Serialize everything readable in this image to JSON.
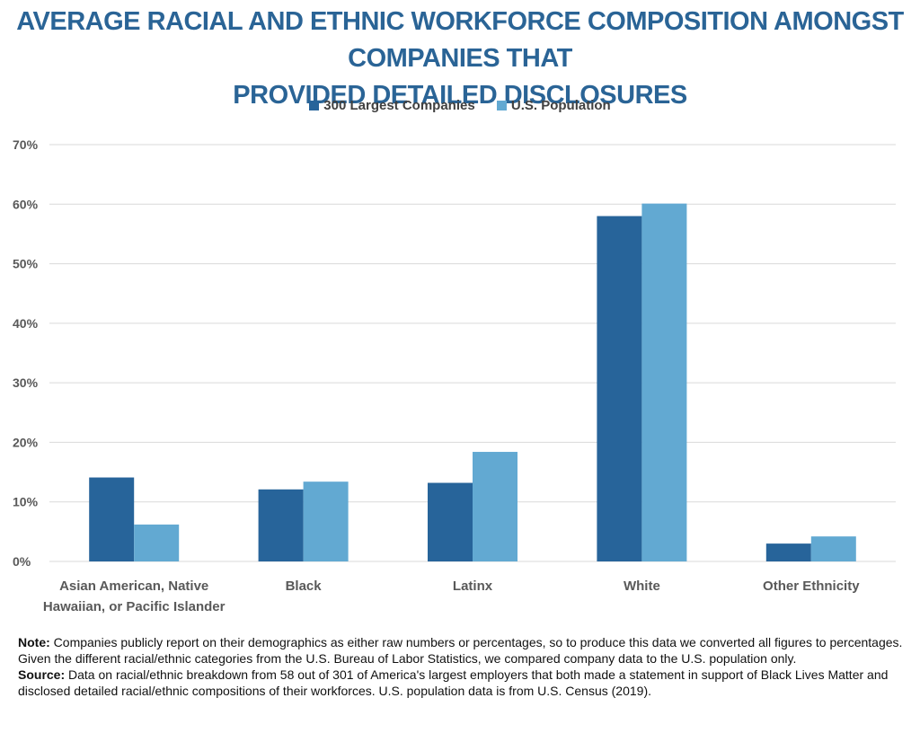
{
  "title_line1": "AVERAGE RACIAL AND ETHNIC WORKFORCE COMPOSITION AMONGST COMPANIES THAT",
  "title_line2": "PROVIDED DETAILED DISCLOSURES",
  "colors": {
    "title": "#2a6496",
    "series1": "#27649a",
    "series2": "#62a9d2",
    "grid": "#d9d9d9",
    "tick": "#595959"
  },
  "chart_data": {
    "type": "bar",
    "title": "AVERAGE RACIAL AND ETHNIC WORKFORCE COMPOSITION AMONGST COMPANIES THAT PROVIDED DETAILED DISCLOSURES",
    "categories": [
      [
        "Asian American, Native",
        "Hawaiian, or Pacific Islander"
      ],
      [
        "Black"
      ],
      [
        "Latinx"
      ],
      [
        "White"
      ],
      [
        "Other Ethnicity"
      ]
    ],
    "series": [
      {
        "name": "300 Largest Companies",
        "values": [
          14.1,
          12.1,
          13.2,
          58.0,
          3.0
        ]
      },
      {
        "name": "U.S. Population",
        "values": [
          6.2,
          13.4,
          18.4,
          60.1,
          4.2
        ]
      }
    ],
    "yticks": [
      "0%",
      "10%",
      "20%",
      "30%",
      "40%",
      "50%",
      "60%",
      "70%"
    ],
    "ylim": [
      0,
      70
    ],
    "grid": true,
    "legend_position": "top-center"
  },
  "notes": {
    "note_label": "Note:",
    "note_text": " Companies publicly report on their demographics as either raw numbers or percentages, so to produce this data we converted all figures to percentages. Given the different racial/ethnic categories from the U.S. Bureau of Labor Statistics, we compared company data to the U.S. population only.",
    "source_label": "Source:",
    "source_text": " Data on racial/ethnic breakdown from 58 out of 301 of America's largest employers that both made a statement in support of Black Lives Matter and disclosed detailed racial/ethnic compositions of their workforces. U.S. population data is from U.S. Census (2019)."
  }
}
